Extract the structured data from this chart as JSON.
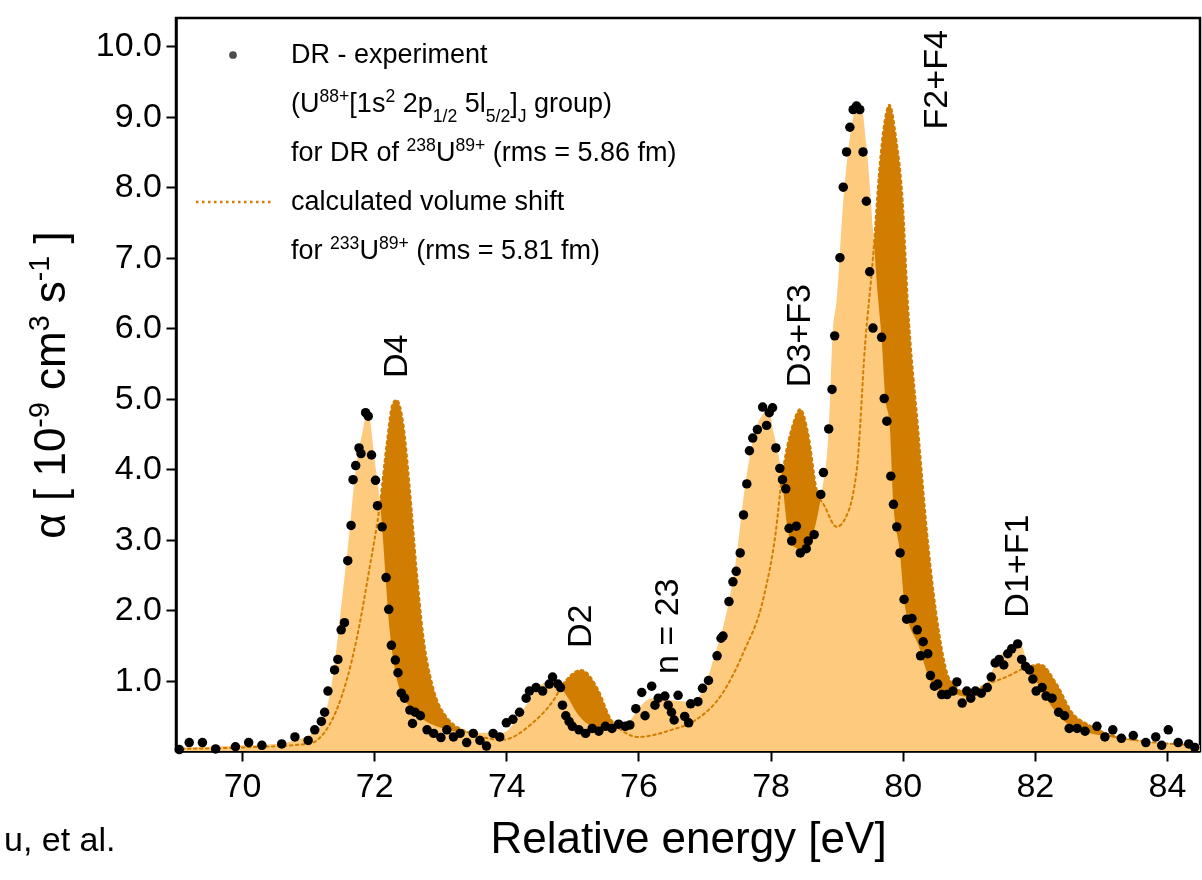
{
  "chart_data": {
    "type": "area",
    "xlabel": "Relative energy [eV]",
    "ylabel": "α [ 10$^{-9}$ cm$^{3}$ s$^{-1}$ ]",
    "xlim": [
      69,
      84.5
    ],
    "ylim": [
      0,
      10.4
    ],
    "xticks": [
      70,
      72,
      74,
      76,
      78,
      80,
      82,
      84
    ],
    "yticks": [
      {
        "value": 1,
        "label": "1.0"
      },
      {
        "value": 2,
        "label": "2.0"
      },
      {
        "value": 3,
        "label": "3.0"
      },
      {
        "value": 4,
        "label": "4.0"
      },
      {
        "value": 5,
        "label": "5.0"
      },
      {
        "value": 6,
        "label": "6.0"
      },
      {
        "value": 7,
        "label": "7.0"
      },
      {
        "value": 8,
        "label": "8.0"
      },
      {
        "value": 9,
        "label": "9.0"
      },
      {
        "value": 10,
        "label": "10.0"
      }
    ],
    "grid": false,
    "legend": "top left",
    "annotations": [
      {
        "text": "D4",
        "x": 72.34,
        "y": 4.98
      },
      {
        "text": "D2",
        "x": 75.13,
        "y": 1.15
      },
      {
        "text": "n = 23",
        "x": 76.45,
        "y": 0.78
      },
      {
        "text": "D3+F3",
        "x": 78.45,
        "y": 4.85
      },
      {
        "text": "F2+F4",
        "x": 79.8,
        "y": 9.17
      },
      {
        "text": "D1+F1",
        "x": 81.75,
        "y": 1.58
      },
      "u, et al."
    ],
    "series": [
      {
        "type": "scatter",
        "name": "DR - experiment\n(U$^{88+}$[1s$^{2}$ 2p$_{1/2}$ 5l$_{5/2}$]$_{J}$  group)\n for DR of $^{238}$U$^{89+}$ (rms = 5.86 fm)",
        "color": "#000000",
        "marker": "circle",
        "x": [
          69.05,
          69.2,
          69.4,
          69.6,
          69.9,
          70.1,
          70.3,
          70.6,
          70.8,
          71.0,
          71.1,
          71.2,
          71.25,
          71.3,
          71.4,
          71.45,
          71.5,
          71.55,
          71.6,
          71.65,
          71.68,
          71.72,
          71.77,
          71.8,
          71.87,
          71.91,
          71.96,
          72.02,
          72.05,
          72.12,
          72.18,
          72.22,
          72.26,
          72.32,
          72.36,
          72.41,
          72.46,
          72.54,
          72.58,
          72.62,
          72.7,
          72.8,
          72.9,
          73.01,
          73.1,
          73.2,
          73.3,
          73.4,
          73.5,
          73.6,
          73.7,
          73.8,
          73.9,
          74.0,
          74.1,
          74.2,
          74.3,
          74.35,
          74.45,
          74.55,
          74.65,
          74.7,
          74.78,
          74.82,
          74.85,
          74.9,
          74.95,
          75.0,
          75.1,
          75.2,
          75.3,
          75.4,
          75.5,
          75.6,
          75.7,
          75.8,
          75.87,
          75.96,
          76.05,
          76.1,
          76.2,
          76.25,
          76.3,
          76.4,
          76.45,
          76.5,
          76.54,
          76.6,
          76.7,
          76.76,
          76.79,
          76.9,
          76.97,
          77.06,
          77.19,
          77.25,
          77.28,
          77.37,
          77.43,
          77.48,
          77.54,
          77.59,
          77.64,
          77.68,
          77.73,
          77.8,
          77.88,
          77.94,
          77.98,
          78.03,
          78.08,
          78.14,
          78.18,
          78.23,
          78.28,
          78.32,
          78.39,
          78.45,
          78.54,
          78.57,
          78.66,
          78.76,
          78.8,
          78.88,
          78.93,
          78.97,
          79.05,
          79.1,
          79.15,
          79.2,
          79.25,
          79.3,
          79.35,
          79.4,
          79.45,
          79.5,
          79.55,
          79.68,
          79.72,
          79.76,
          79.82,
          79.86,
          79.91,
          79.96,
          80.02,
          80.06,
          80.14,
          80.22,
          80.27,
          80.31,
          80.38,
          80.42,
          80.48,
          80.53,
          80.59,
          80.67,
          80.76,
          80.82,
          80.9,
          80.97,
          81.03,
          81.1,
          81.19,
          81.28,
          81.34,
          81.4,
          81.46,
          81.53,
          81.59,
          81.65,
          81.74,
          81.8,
          81.86,
          81.92,
          81.97,
          82.02,
          82.11,
          82.17,
          82.26,
          82.36,
          82.45,
          82.52,
          82.64,
          82.76,
          82.94,
          83.06,
          83.18,
          83.31,
          83.49,
          83.68,
          83.83,
          83.92,
          84.02,
          84.17,
          84.33,
          84.42
        ],
        "values": [
          0.02,
          0.12,
          0.12,
          0.03,
          0.06,
          0.12,
          0.08,
          0.1,
          0.2,
          0.15,
          0.3,
          0.42,
          0.55,
          0.85,
          1.15,
          1.3,
          1.72,
          1.82,
          2.7,
          3.2,
          3.85,
          4.05,
          4.3,
          4.22,
          4.8,
          4.75,
          4.2,
          3.84,
          3.48,
          3.18,
          2.46,
          2.01,
          1.5,
          1.29,
          1.11,
          0.82,
          0.75,
          0.58,
          0.39,
          0.55,
          0.5,
          0.3,
          0.25,
          0.19,
          0.3,
          0.2,
          0.25,
          0.12,
          0.25,
          0.15,
          0.07,
          0.25,
          0.2,
          0.4,
          0.45,
          0.55,
          0.75,
          0.85,
          0.9,
          0.85,
          0.95,
          1.05,
          0.95,
          0.9,
          0.65,
          0.5,
          0.42,
          0.35,
          0.3,
          0.25,
          0.32,
          0.28,
          0.35,
          0.32,
          0.38,
          0.35,
          0.37,
          0.6,
          0.83,
          0.5,
          0.92,
          0.65,
          0.75,
          0.78,
          0.65,
          0.55,
          0.44,
          0.79,
          0.49,
          0.4,
          0.67,
          0.7,
          0.89,
          1.0,
          1.35,
          1.6,
          1.63,
          2.12,
          2.4,
          2.55,
          2.81,
          3.35,
          3.79,
          4.26,
          4.44,
          4.56,
          4.88,
          4.62,
          4.8,
          4.87,
          4.3,
          4.01,
          3.85,
          3.72,
          3.16,
          2.98,
          3.19,
          2.81,
          2.87,
          2.98,
          3.07,
          3.64,
          3.95,
          4.57,
          5.13,
          5.89,
          7.0,
          8.0,
          8.5,
          8.85,
          9.1,
          9.15,
          9.1,
          8.5,
          7.8,
          6.8,
          6.0,
          5.87,
          5.0,
          4.68,
          3.9,
          3.5,
          3.18,
          2.81,
          2.15,
          1.87,
          1.88,
          1.72,
          1.35,
          1.55,
          1.38,
          1.07,
          0.92,
          0.95,
          0.8,
          0.8,
          0.85,
          0.98,
          0.68,
          0.85,
          0.75,
          0.85,
          0.82,
          0.9,
          1.05,
          1.25,
          1.3,
          1.22,
          1.38,
          1.45,
          1.52,
          1.3,
          1.2,
          1.15,
          1.02,
          0.85,
          0.9,
          0.78,
          0.75,
          0.55,
          0.5,
          0.32,
          0.32,
          0.28,
          0.35,
          0.2,
          0.3,
          0.18,
          0.22,
          0.12,
          0.2,
          0.08,
          0.3,
          0.12,
          0.1,
          0.05
        ]
      },
      {
        "type": "area",
        "name": "calculated volume shift\n for $^{233}$U$^{89+}$ (rms = 5.81 fm)",
        "color": "#d17d01",
        "line_style": "dotted",
        "x": [
          69.0,
          70.0,
          71.0,
          71.43,
          71.73,
          71.93,
          72.09,
          72.19,
          72.28,
          72.34,
          72.44,
          72.54,
          72.64,
          72.74,
          72.89,
          73.09,
          73.44,
          73.94,
          74.4,
          74.7,
          74.9,
          75.13,
          75.4,
          75.56,
          75.8,
          76.0,
          76.5,
          76.85,
          77.28,
          77.59,
          77.9,
          78.08,
          78.17,
          78.33,
          78.45,
          78.57,
          78.7,
          78.82,
          79.0,
          79.13,
          79.31,
          79.43,
          79.55,
          79.65,
          79.72,
          79.8,
          79.9,
          80.0,
          80.08,
          80.23,
          80.39,
          80.54,
          80.72,
          80.97,
          81.28,
          81.59,
          81.83,
          82.08,
          82.33,
          82.57,
          82.82,
          83.43,
          84.5
        ],
        "values": [
          0.03,
          0.05,
          0.1,
          0.58,
          1.57,
          2.6,
          3.53,
          4.37,
          4.93,
          4.98,
          4.65,
          3.72,
          2.6,
          1.66,
          0.91,
          0.49,
          0.26,
          0.16,
          0.4,
          0.7,
          1.0,
          1.15,
          0.85,
          0.49,
          0.26,
          0.2,
          0.3,
          0.43,
          0.83,
          1.4,
          2.2,
          3.12,
          3.87,
          4.61,
          4.85,
          4.5,
          3.7,
          3.47,
          3.18,
          3.3,
          4.04,
          5.76,
          7.0,
          8.3,
          8.9,
          9.17,
          8.7,
          7.8,
          6.33,
          4.61,
          2.9,
          1.75,
          1.0,
          0.83,
          0.95,
          1.06,
          1.17,
          1.23,
          0.95,
          0.54,
          0.37,
          0.17,
          0.08
        ]
      },
      {
        "color": "#fdca7e",
        "x": [
          69.0,
          69.5,
          70.0,
          70.5,
          70.83,
          71.08,
          71.23,
          71.38,
          71.51,
          71.61,
          71.71,
          71.83,
          71.9,
          72.01,
          72.09,
          72.24,
          72.39,
          72.59,
          72.94,
          73.44,
          73.94,
          74.25,
          74.45,
          74.7,
          74.9,
          75.1,
          75.3,
          75.6,
          75.87,
          76.0,
          76.2,
          76.5,
          76.8,
          77.0,
          77.15,
          77.28,
          77.46,
          77.62,
          77.77,
          77.9,
          77.96,
          78.05,
          78.17,
          78.25,
          78.35,
          78.5,
          78.65,
          78.76,
          78.88,
          78.94,
          79.0,
          79.1,
          79.2,
          79.3,
          79.36,
          79.45,
          79.55,
          79.62,
          79.68,
          79.74,
          79.8,
          79.86,
          79.96,
          80.02,
          80.08,
          80.23,
          80.39,
          80.48,
          80.72,
          80.97,
          81.22,
          81.47,
          81.65,
          81.75,
          81.9,
          82.08,
          82.33,
          82.57,
          83.13,
          83.8,
          84.5
        ],
        "values": [
          0.05,
          0.06,
          0.08,
          0.1,
          0.16,
          0.26,
          0.44,
          1.1,
          2.13,
          2.97,
          3.9,
          4.56,
          4.85,
          4.1,
          3.5,
          1.66,
          0.87,
          0.58,
          0.35,
          0.26,
          0.26,
          0.58,
          0.87,
          1.0,
          0.8,
          0.5,
          0.35,
          0.3,
          0.43,
          0.6,
          0.75,
          0.72,
          0.7,
          0.9,
          1.35,
          1.75,
          2.6,
          3.8,
          4.55,
          4.8,
          4.87,
          4.5,
          3.9,
          3.2,
          2.9,
          2.85,
          3.1,
          3.6,
          4.56,
          5.93,
          6.4,
          7.8,
          8.7,
          9.15,
          9.2,
          8.6,
          7.4,
          6.5,
          5.87,
          4.99,
          4.67,
          3.5,
          2.8,
          2.15,
          1.86,
          1.52,
          1.06,
          0.89,
          0.83,
          0.77,
          0.89,
          1.35,
          1.46,
          1.58,
          1.23,
          0.89,
          0.54,
          0.34,
          0.2,
          0.12,
          0.08
        ]
      }
    ]
  }
}
